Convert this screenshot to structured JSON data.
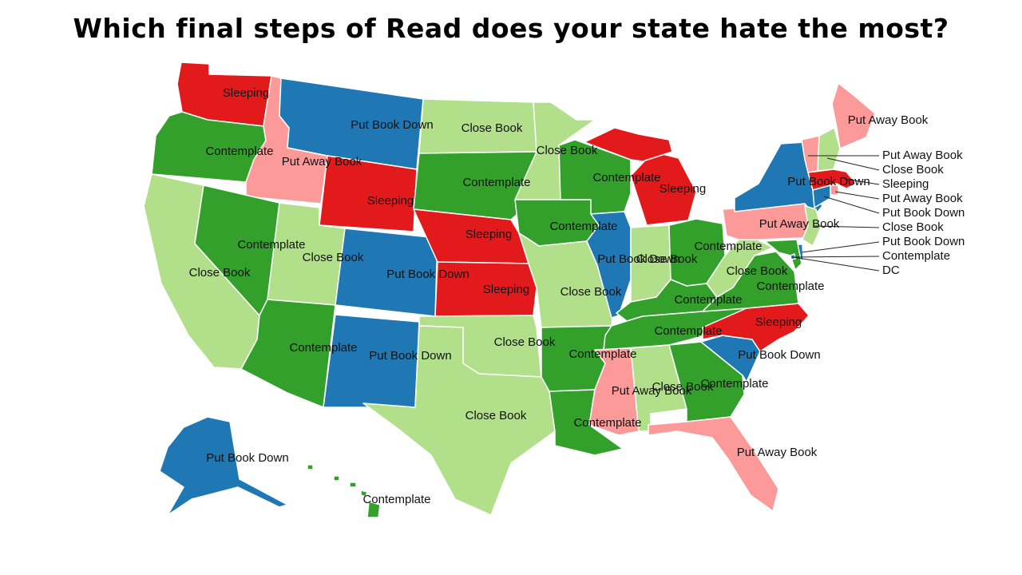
{
  "title": "Which final steps of Read does your state hate the most?",
  "colors": {
    "Sleeping": "#e31a1c",
    "Put Away Book": "#fb9a99",
    "Put Book Down": "#1f78b4",
    "Contemplate": "#33a02c",
    "Close Book": "#b2df8a"
  },
  "states": [
    {
      "id": "WA",
      "value": "Sleeping"
    },
    {
      "id": "OR",
      "value": "Contemplate"
    },
    {
      "id": "CA",
      "value": "Close Book"
    },
    {
      "id": "ID",
      "value": "Put Away Book"
    },
    {
      "id": "NV",
      "value": "Contemplate"
    },
    {
      "id": "MT",
      "value": "Put Book Down"
    },
    {
      "id": "WY",
      "value": "Sleeping"
    },
    {
      "id": "UT",
      "value": "Close Book"
    },
    {
      "id": "AZ",
      "value": "Contemplate"
    },
    {
      "id": "CO",
      "value": "Put Book Down"
    },
    {
      "id": "NM",
      "value": "Put Book Down"
    },
    {
      "id": "ND",
      "value": "Close Book"
    },
    {
      "id": "SD",
      "value": "Contemplate"
    },
    {
      "id": "NE",
      "value": "Sleeping"
    },
    {
      "id": "KS",
      "value": "Sleeping"
    },
    {
      "id": "OK",
      "value": "Close Book"
    },
    {
      "id": "TX",
      "value": "Close Book"
    },
    {
      "id": "MN",
      "value": "Close Book"
    },
    {
      "id": "IA",
      "value": "Contemplate"
    },
    {
      "id": "MO",
      "value": "Close Book"
    },
    {
      "id": "AR",
      "value": "Contemplate"
    },
    {
      "id": "LA",
      "value": "Contemplate"
    },
    {
      "id": "WI",
      "value": "Contemplate"
    },
    {
      "id": "IL",
      "value": "Put Book Down"
    },
    {
      "id": "MI",
      "value": "Sleeping"
    },
    {
      "id": "IN",
      "value": "Close Book"
    },
    {
      "id": "OH",
      "value": "Contemplate"
    },
    {
      "id": "KY",
      "value": "Contemplate"
    },
    {
      "id": "TN",
      "value": "Contemplate"
    },
    {
      "id": "MS",
      "value": "Put Away Book"
    },
    {
      "id": "AL",
      "value": "Close Book"
    },
    {
      "id": "GA",
      "value": "Contemplate"
    },
    {
      "id": "FL",
      "value": "Put Away Book"
    },
    {
      "id": "SC",
      "value": "Put Book Down"
    },
    {
      "id": "NC",
      "value": "Sleeping"
    },
    {
      "id": "VA",
      "value": "Contemplate"
    },
    {
      "id": "WV",
      "value": "Close Book"
    },
    {
      "id": "PA",
      "value": "Put Away Book"
    },
    {
      "id": "NY",
      "value": "Put Book Down"
    },
    {
      "id": "ME",
      "value": "Put Away Book"
    },
    {
      "id": "VT",
      "value": "Put Away Book"
    },
    {
      "id": "NH",
      "value": "Close Book"
    },
    {
      "id": "MA",
      "value": "Sleeping"
    },
    {
      "id": "RI",
      "value": "Put Away Book"
    },
    {
      "id": "CT",
      "value": "Put Book Down"
    },
    {
      "id": "NJ",
      "value": "Close Book"
    },
    {
      "id": "DE",
      "value": "Put Book Down"
    },
    {
      "id": "MD",
      "value": "Contemplate"
    },
    {
      "id": "DC",
      "value": "DC"
    },
    {
      "id": "AK",
      "value": "Put Book Down"
    },
    {
      "id": "HI",
      "value": "Contemplate"
    }
  ]
}
